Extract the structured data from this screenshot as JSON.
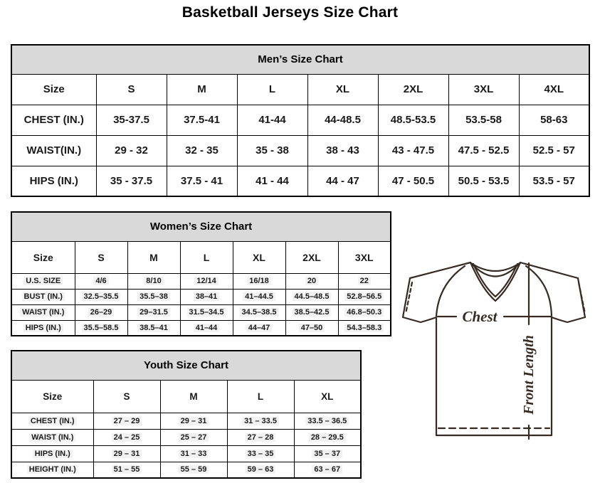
{
  "page_title": "Basketball Jerseys Size Chart",
  "tables": {
    "mens": {
      "title": "Men’s Size Chart",
      "columns": [
        "Size",
        "S",
        "M",
        "L",
        "XL",
        "2XL",
        "3XL",
        "4XL"
      ],
      "highlight_values": false,
      "rows": [
        {
          "label": "CHEST (IN.)",
          "values": [
            "35-37.5",
            "37.5-41",
            "41-44",
            "44-48.5",
            "48.5-53.5",
            "53.5-58",
            "58-63"
          ]
        },
        {
          "label": "WAIST(IN.)",
          "values": [
            "29 - 32",
            "32 - 35",
            "35 - 38",
            "38 - 43",
            "43 - 47.5",
            "47.5 - 52.5",
            "52.5 - 57"
          ]
        },
        {
          "label": "HIPS (IN.)",
          "values": [
            "35 - 37.5",
            "37.5 - 41",
            "41 - 44",
            "44 - 47",
            "47 - 50.5",
            "50.5 - 53.5",
            "53.5 - 57"
          ]
        }
      ]
    },
    "womens": {
      "title": "Women’s Size Chart",
      "columns": [
        "Size",
        "S",
        "M",
        "L",
        "XL",
        "2XL",
        "3XL"
      ],
      "highlight_values": true,
      "rows": [
        {
          "label": "U.S. SIZE",
          "values": [
            "4/6",
            "8/10",
            "12/14",
            "16/18",
            "20",
            "22"
          ]
        },
        {
          "label": "BUST (IN.)",
          "values": [
            "32.5–35.5",
            "35.5–38",
            "38–41",
            "41–44.5",
            "44.5–48.5",
            "52.8–56.5"
          ]
        },
        {
          "label": "WAIST (IN.)",
          "values": [
            "26–29",
            "29–31.5",
            "31.5–34.5",
            "34.5–38.5",
            "38.5–42.5",
            "46.8–50.3"
          ]
        },
        {
          "label": "HIPS (IN.)",
          "values": [
            "35.5–58.5",
            "38.5–41",
            "41–44",
            "44–47",
            "47–50",
            "54.3–58.3"
          ]
        }
      ]
    },
    "youth": {
      "title": "Youth Size Chart",
      "columns": [
        "Size",
        "S",
        "M",
        "L",
        "XL"
      ],
      "highlight_values": true,
      "rows": [
        {
          "label": "CHEST (IN.)",
          "values": [
            "27 – 29",
            "29 – 31",
            "31 – 33.5",
            "33.5 – 36.5"
          ]
        },
        {
          "label": "WAIST (IN.)",
          "values": [
            "24 – 25",
            "25 – 27",
            "27 – 28",
            "28 – 29.5"
          ]
        },
        {
          "label": "HIPS (IN.)",
          "values": [
            "29 – 31",
            "31 – 33",
            "33 – 35",
            "35 – 37"
          ]
        },
        {
          "label": "HEIGHT (IN.)",
          "values": [
            "51 – 55",
            "55 – 59",
            "59 – 63",
            "63 – 67"
          ]
        }
      ]
    }
  },
  "diagram": {
    "chest_label": "Chest",
    "front_length_label": "Front Length"
  },
  "colors": {
    "table_header_fill": "#d9d9d9",
    "table_border": "#000000",
    "diagram_stroke": "#362b23",
    "value_highlight": "#f2f2f2"
  }
}
